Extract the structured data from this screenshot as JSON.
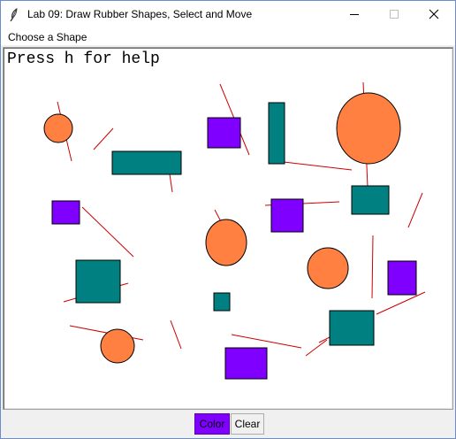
{
  "window": {
    "title": "Lab 09: Draw Rubber Shapes, Select and Move",
    "controls": [
      "minimize",
      "maximize",
      "close"
    ]
  },
  "menu": {
    "items": [
      {
        "label": "Choose a Shape"
      }
    ]
  },
  "canvas": {
    "help_text": "Press h for help",
    "colors": {
      "circle_fill": "#ff8040",
      "teal_fill": "#008080",
      "purple_fill": "#8000ff",
      "line": "#cc0000",
      "outline": "#000000"
    },
    "shape_summary": {
      "circles": 6,
      "teal_rectangles": 7,
      "purple_rectangles": 6,
      "lines": 18
    }
  },
  "buttons": {
    "color_label": "Color",
    "clear_label": "Clear",
    "color_button_bg": "#8000ff"
  }
}
